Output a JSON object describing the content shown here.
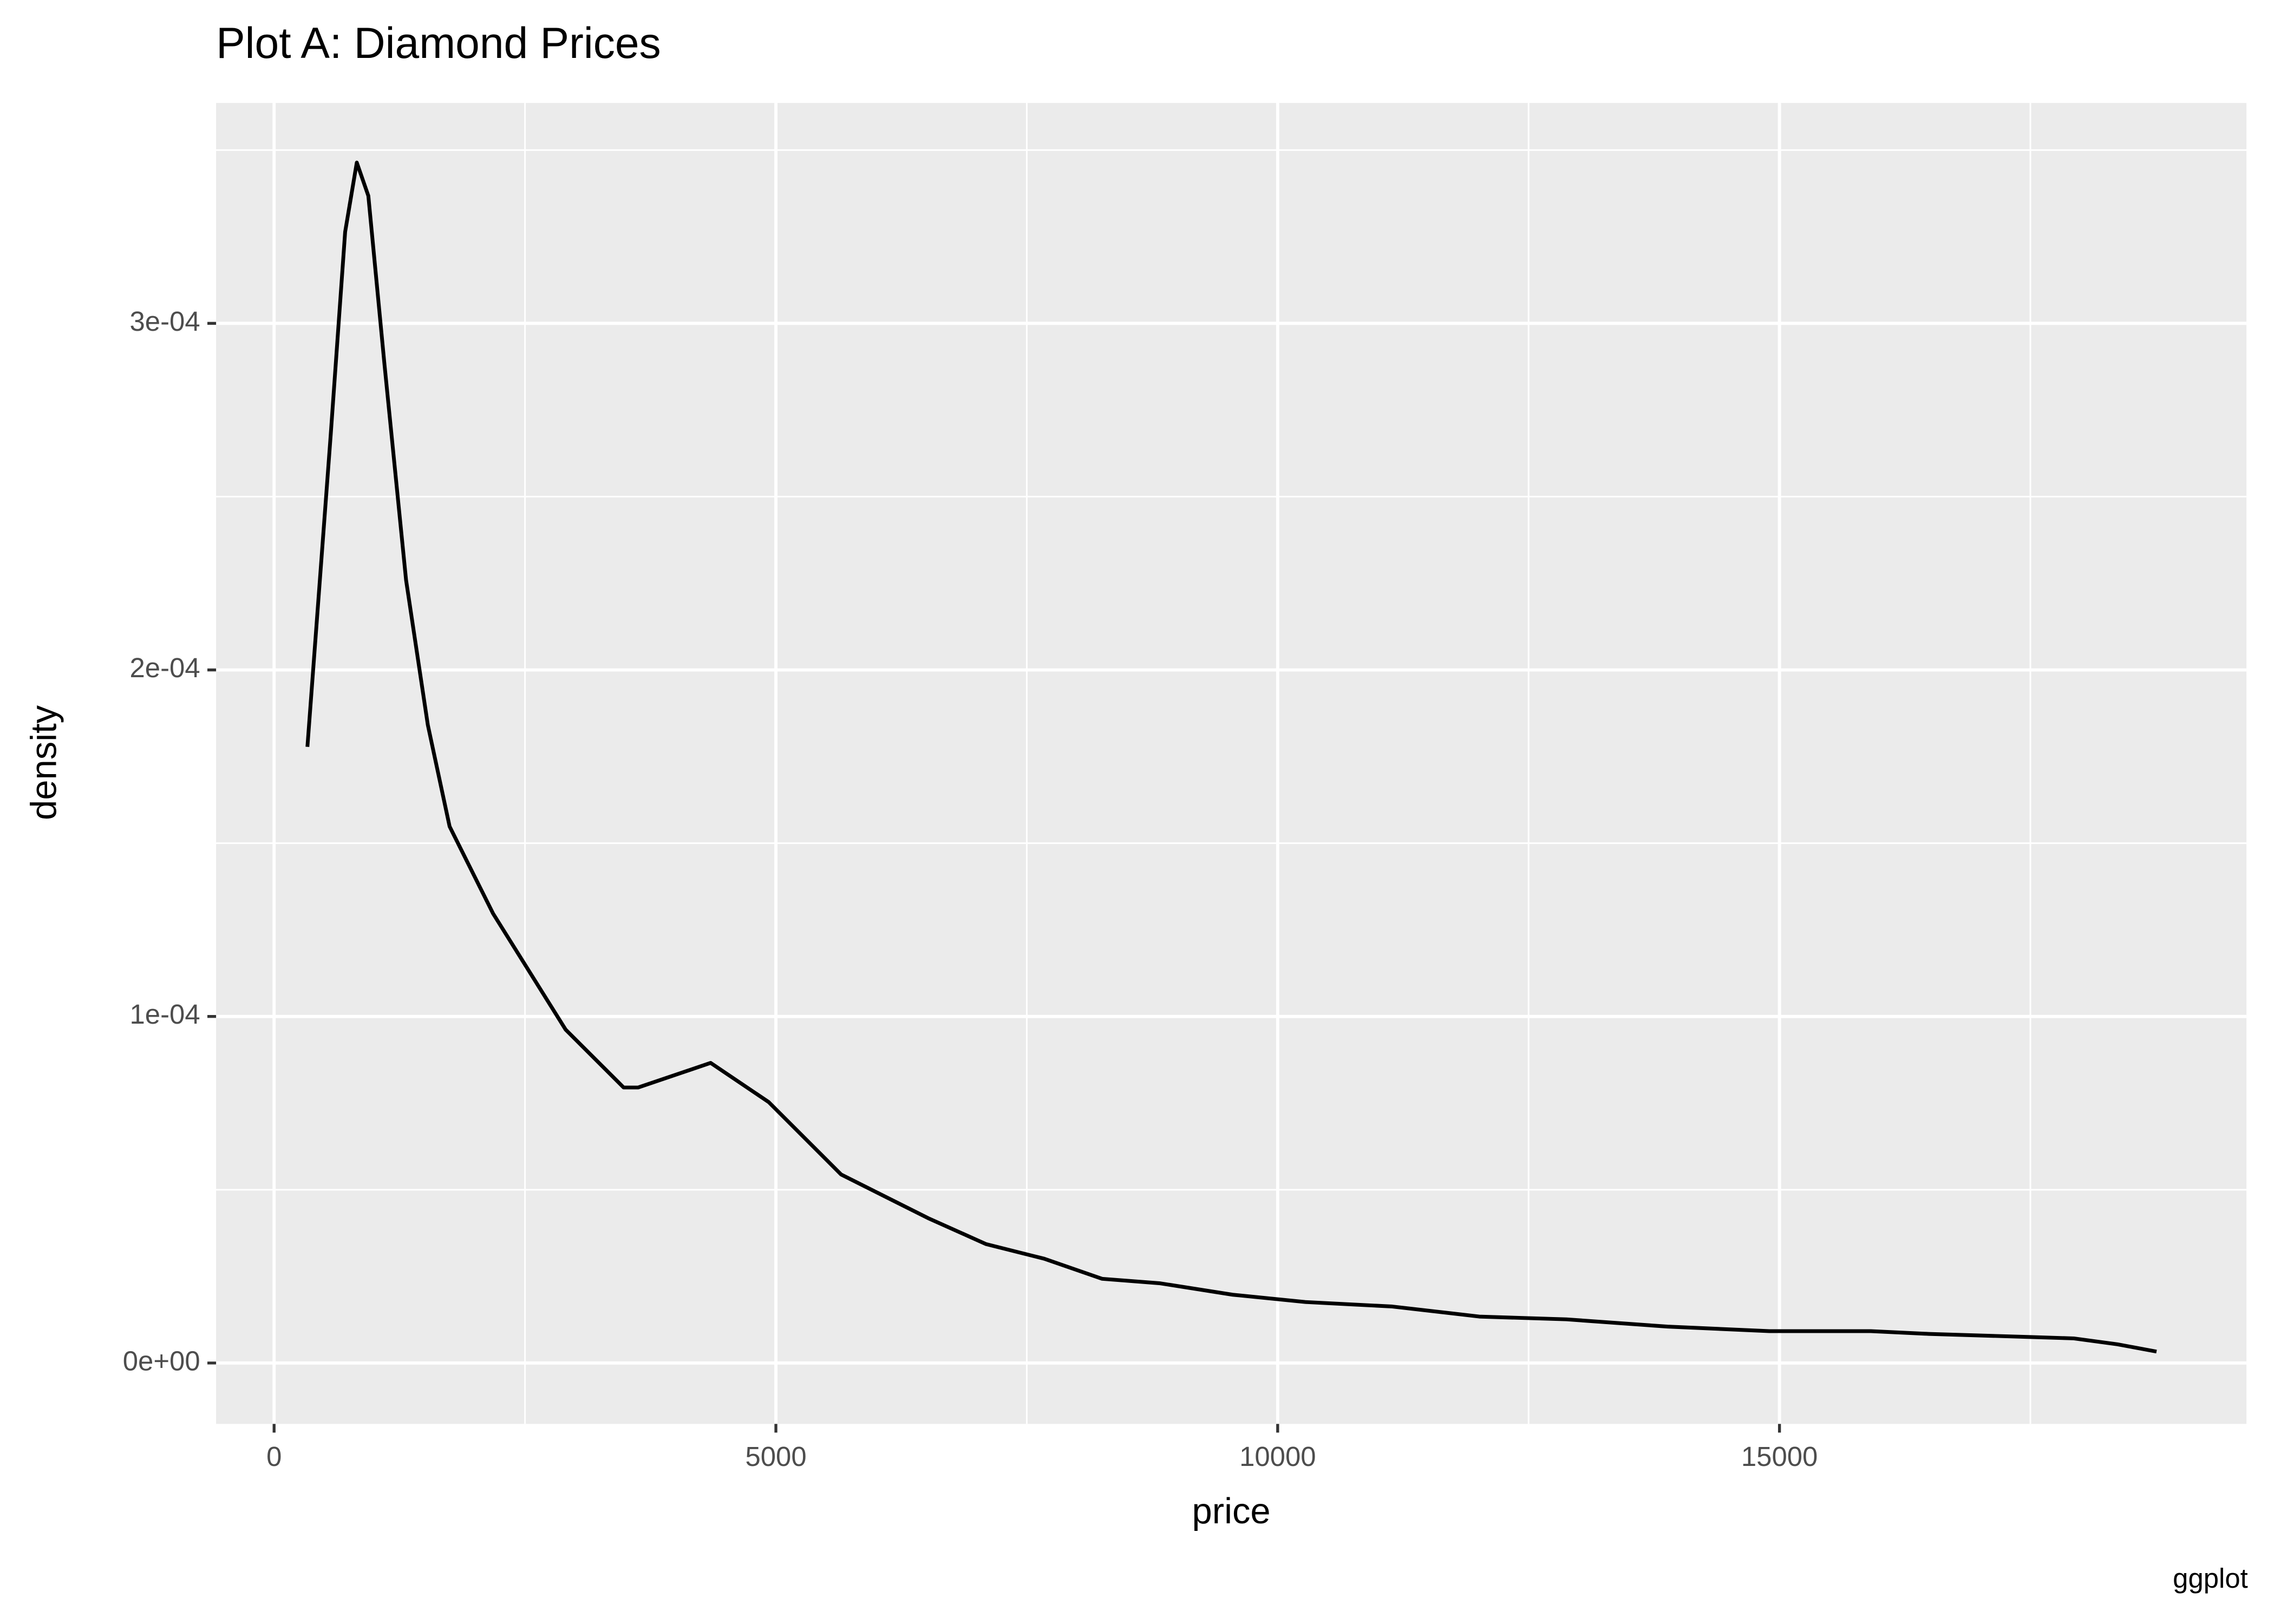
{
  "chart_data": {
    "type": "line",
    "title": "Plot A: Diamond Prices",
    "x_label": "price",
    "y_label": "density",
    "caption": "ggplot",
    "color": "#000000",
    "panel_color": "#ebebeb",
    "grid": true,
    "x": [
      332,
      564,
      708,
      824,
      939,
      1098,
      1315,
      1532,
      1749,
      2182,
      2905,
      3483,
      3627,
      4350,
      4928,
      5650,
      6517,
      7095,
      7673,
      8251,
      8829,
      9552,
      10275,
      11142,
      12009,
      12876,
      13887,
      14899,
      15910,
      16488,
      17500,
      17933,
      18367,
      18757
    ],
    "values": [
      0.0001778,
      0.0002678,
      0.0003264,
      0.0003464,
      0.0003368,
      0.0002887,
      0.0002259,
      0.0001841,
      0.0001548,
      0.0001297,
      9.62e-05,
      7.95e-05,
      7.95e-05,
      8.66e-05,
      7.53e-05,
      5.44e-05,
      4.18e-05,
      3.43e-05,
      3.01e-05,
      2.43e-05,
      2.3e-05,
      1.97e-05,
      1.76e-05,
      1.63e-05,
      1.34e-05,
      1.26e-05,
      1.05e-05,
      9.2e-06,
      9.2e-06,
      8.4e-06,
      7.5e-06,
      7.1e-06,
      5.4e-06,
      3.3e-06
    ],
    "xlim": [
      -578,
      19653
    ],
    "ylim": [
      -1.757e-05,
      0.0003636
    ],
    "xticks": [
      0,
      5000,
      10000,
      15000
    ],
    "yticks": [
      {
        "value": 0,
        "label": "0e+00"
      },
      {
        "value": 0.0001,
        "label": "1e-04"
      },
      {
        "value": 0.0002,
        "label": "2e-04"
      },
      {
        "value": 0.0003,
        "label": "3e-04"
      }
    ],
    "minor_grid_x": [
      2500,
      7500,
      12500,
      17500
    ],
    "minor_grid_y": [
      5e-05,
      0.00015,
      0.00025,
      0.00035
    ]
  }
}
